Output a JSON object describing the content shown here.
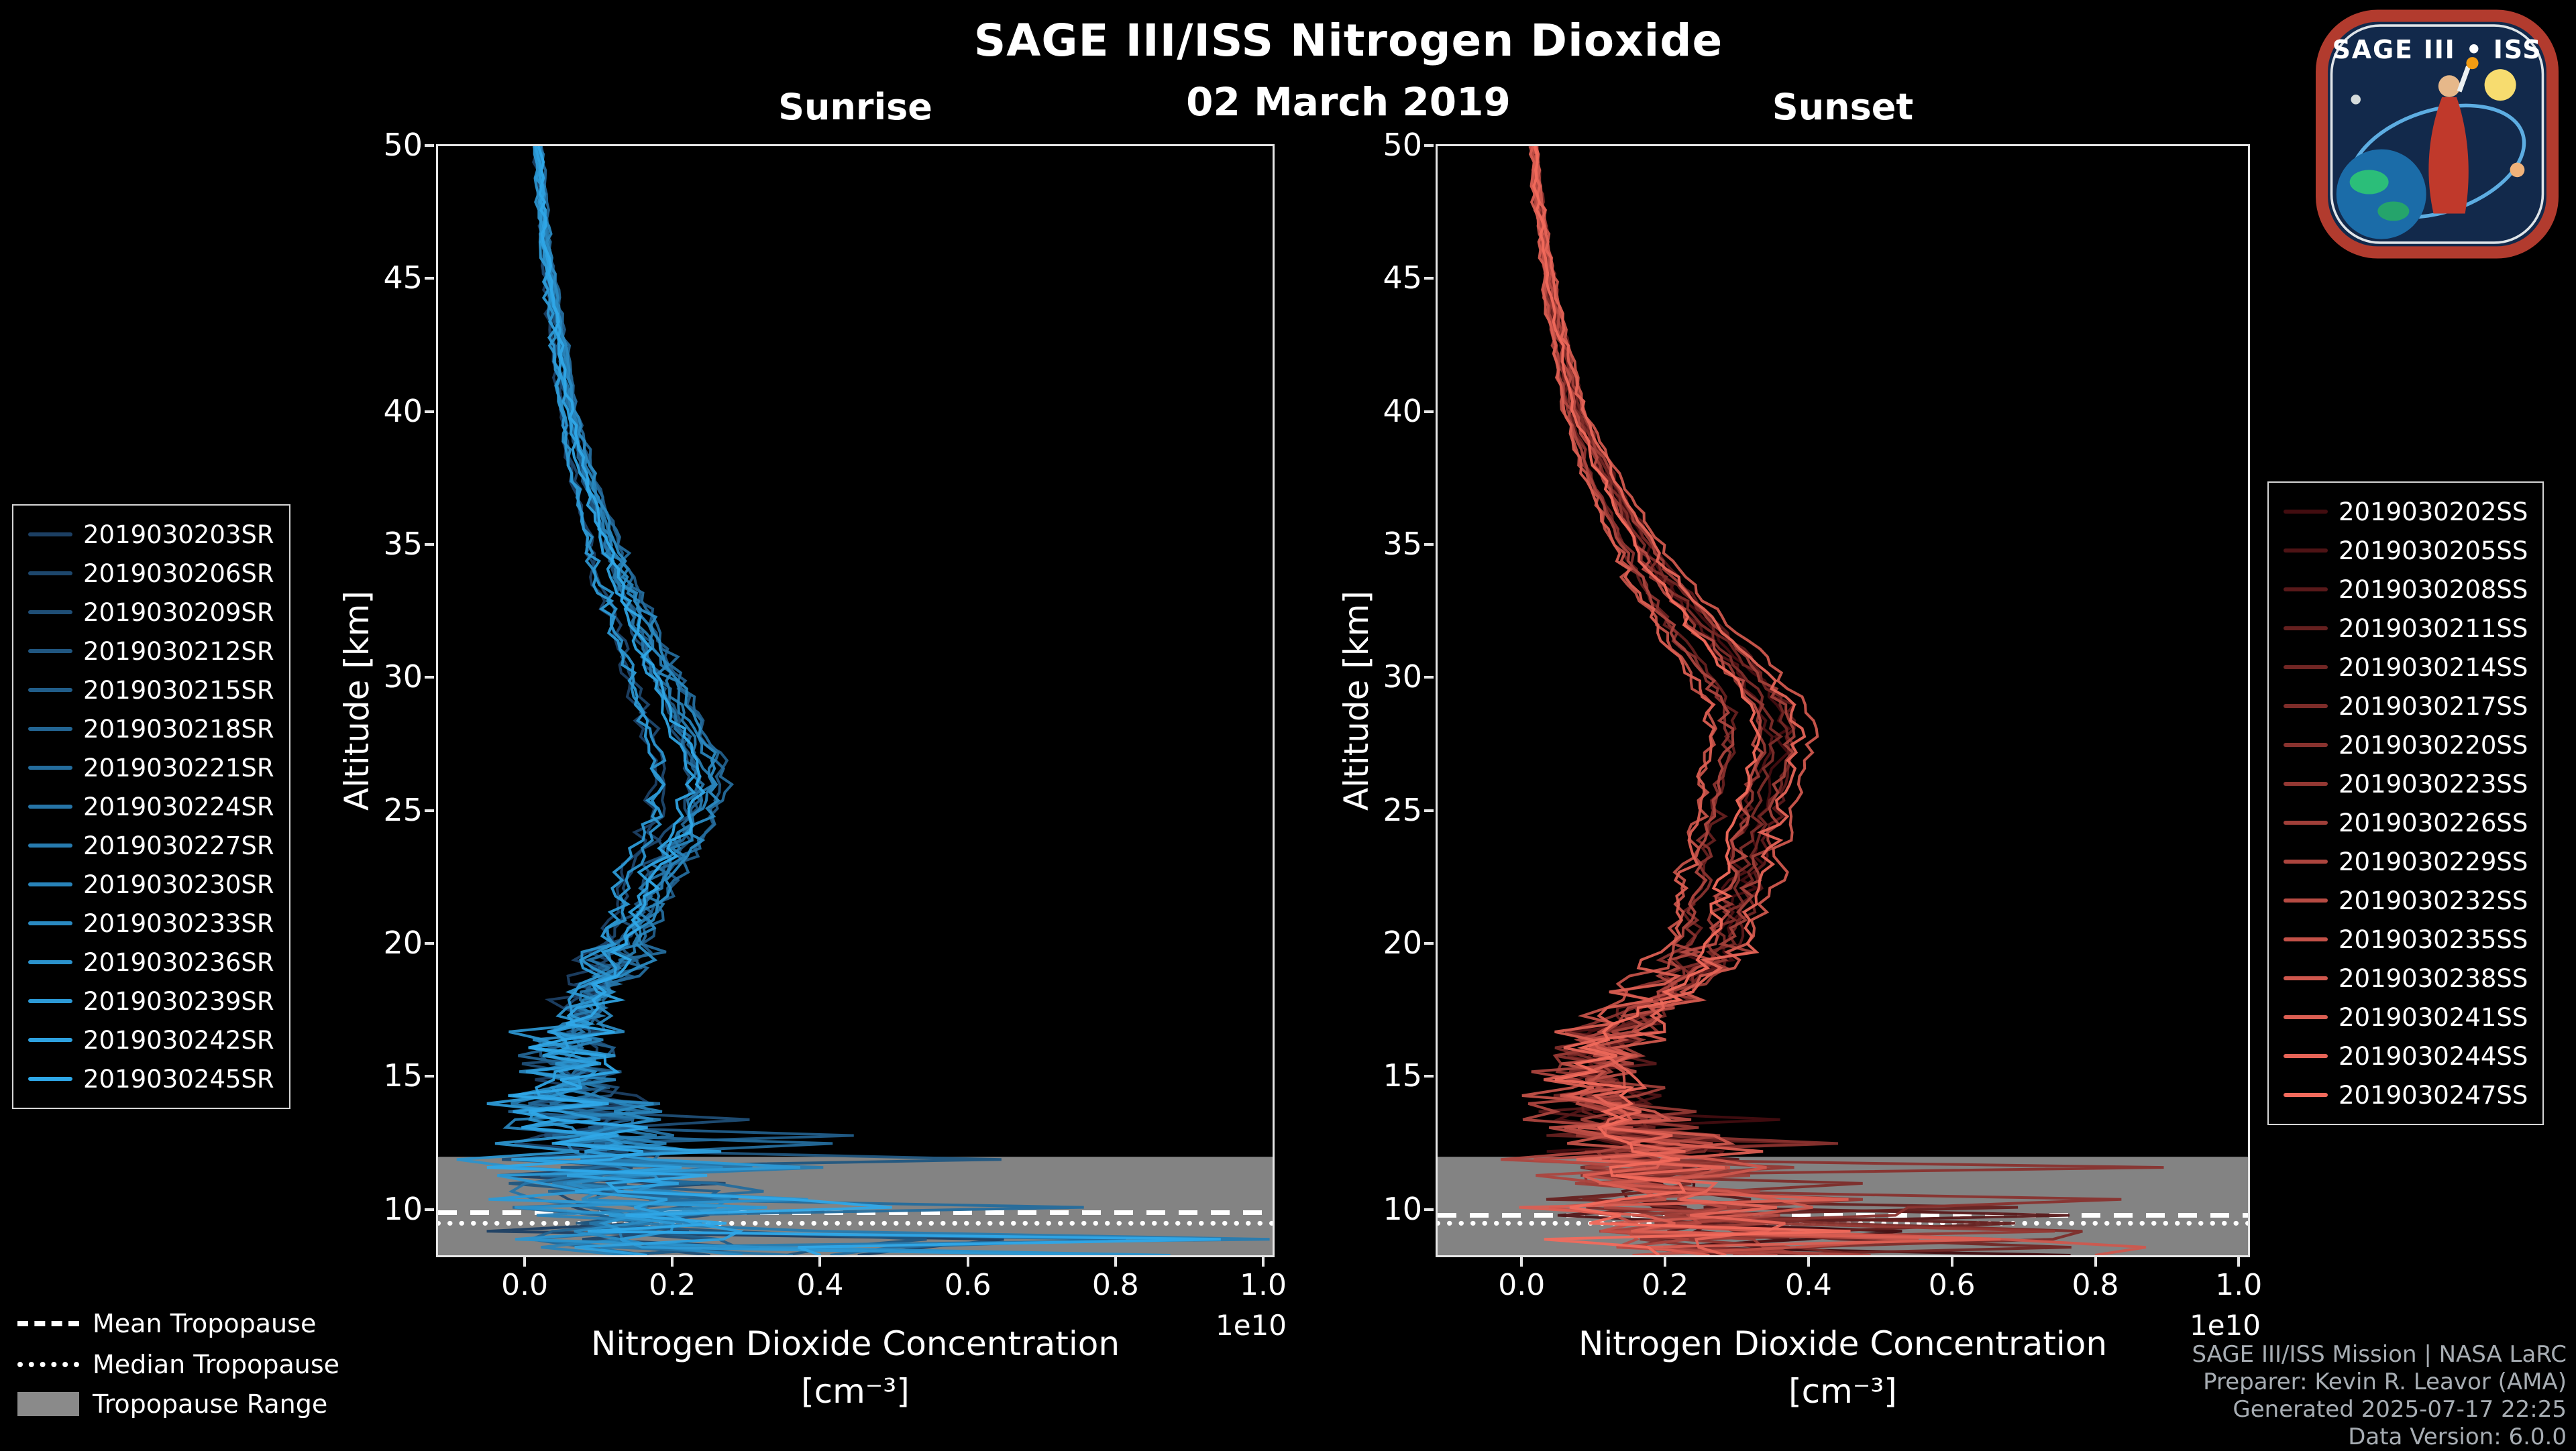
{
  "title": "SAGE III/ISS Nitrogen Dioxide",
  "date": "02 March 2019",
  "legend_bottom": {
    "mean_label": "Mean Tropopause",
    "median_label": "Median Tropopause",
    "range_label": "Tropopause Range"
  },
  "credits": [
    "SAGE III/ISS Mission | NASA LaRC",
    "Preparer: Kevin R. Leavor (AMA)",
    "Generated 2025-07-17 22:25",
    "Data Version: 6.0.0"
  ],
  "logo": {
    "title": "SAGE III • ISS"
  },
  "chart_data": [
    {
      "type": "line",
      "title": "Sunrise",
      "ylabel": "Altitude [km]",
      "xlabel_line1": "Nitrogen Dioxide Concentration",
      "xlabel_line2": "[cm⁻³]",
      "x_offset_label": "1e10",
      "xlim": [
        -0.12,
        1.01
      ],
      "ylim": [
        8.3,
        50
      ],
      "xticks": [
        0.0,
        0.2,
        0.4,
        0.6,
        0.8,
        1.0
      ],
      "yticks": [
        10,
        15,
        20,
        25,
        30,
        35,
        40,
        45,
        50
      ],
      "grid": false,
      "legend_position": "outside-left",
      "color_start": "#1c3f63",
      "color_end": "#2fa8e8",
      "series_names": [
        "2019030203SR",
        "2019030206SR",
        "2019030209SR",
        "2019030212SR",
        "2019030215SR",
        "2019030218SR",
        "2019030221SR",
        "2019030224SR",
        "2019030227SR",
        "2019030230SR",
        "2019030233SR",
        "2019030236SR",
        "2019030239SR",
        "2019030242SR",
        "2019030245SR"
      ],
      "mean_profile": {
        "altitude": [
          50,
          48,
          46,
          44,
          42,
          40,
          38,
          36,
          34,
          32,
          30,
          29,
          28,
          27,
          26,
          25,
          24,
          23,
          22,
          21,
          20,
          19,
          18,
          17,
          16,
          15,
          14,
          13,
          12,
          11,
          10,
          9,
          8.3
        ],
        "value": [
          0.015,
          0.02,
          0.025,
          0.035,
          0.045,
          0.055,
          0.07,
          0.09,
          0.11,
          0.14,
          0.165,
          0.18,
          0.195,
          0.21,
          0.215,
          0.205,
          0.19,
          0.17,
          0.155,
          0.14,
          0.125,
          0.105,
          0.085,
          0.07,
          0.06,
          0.055,
          0.06,
          0.08,
          0.09,
          0.1,
          0.12,
          0.15,
          0.18
        ]
      },
      "tropopause": {
        "mean": 9.9,
        "median": 9.5,
        "range": [
          8.3,
          12.0
        ]
      }
    },
    {
      "type": "line",
      "title": "Sunset",
      "ylabel": "Altitude [km]",
      "xlabel_line1": "Nitrogen Dioxide Concentration",
      "xlabel_line2": "[cm⁻³]",
      "x_offset_label": "1e10",
      "xlim": [
        -0.12,
        1.01
      ],
      "ylim": [
        8.3,
        50
      ],
      "xticks": [
        0.0,
        0.2,
        0.4,
        0.6,
        0.8,
        1.0
      ],
      "yticks": [
        10,
        15,
        20,
        25,
        30,
        35,
        40,
        45,
        50
      ],
      "grid": false,
      "legend_position": "outside-right",
      "color_start": "#420d10",
      "color_end": "#f26a5c",
      "series_names": [
        "2019030202SS",
        "2019030205SS",
        "2019030208SS",
        "2019030211SS",
        "2019030214SS",
        "2019030217SS",
        "2019030220SS",
        "2019030223SS",
        "2019030226SS",
        "2019030229SS",
        "2019030232SS",
        "2019030235SS",
        "2019030238SS",
        "2019030241SS",
        "2019030244SS",
        "2019030247SS"
      ],
      "mean_profile": {
        "altitude": [
          50,
          48,
          46,
          44,
          42,
          40,
          38,
          36,
          34,
          32,
          30,
          29,
          28,
          27,
          26,
          25,
          24,
          23,
          22,
          21,
          20,
          19,
          18,
          17,
          16,
          15,
          14,
          13,
          12,
          11,
          10,
          9,
          8.3
        ],
        "value": [
          0.015,
          0.02,
          0.03,
          0.04,
          0.055,
          0.07,
          0.1,
          0.135,
          0.175,
          0.23,
          0.29,
          0.315,
          0.325,
          0.32,
          0.31,
          0.3,
          0.29,
          0.285,
          0.275,
          0.265,
          0.255,
          0.23,
          0.19,
          0.14,
          0.11,
          0.1,
          0.11,
          0.13,
          0.15,
          0.17,
          0.2,
          0.25,
          0.28
        ]
      },
      "tropopause": {
        "mean": 9.8,
        "median": 9.5,
        "range": [
          8.3,
          12.0
        ]
      }
    }
  ]
}
